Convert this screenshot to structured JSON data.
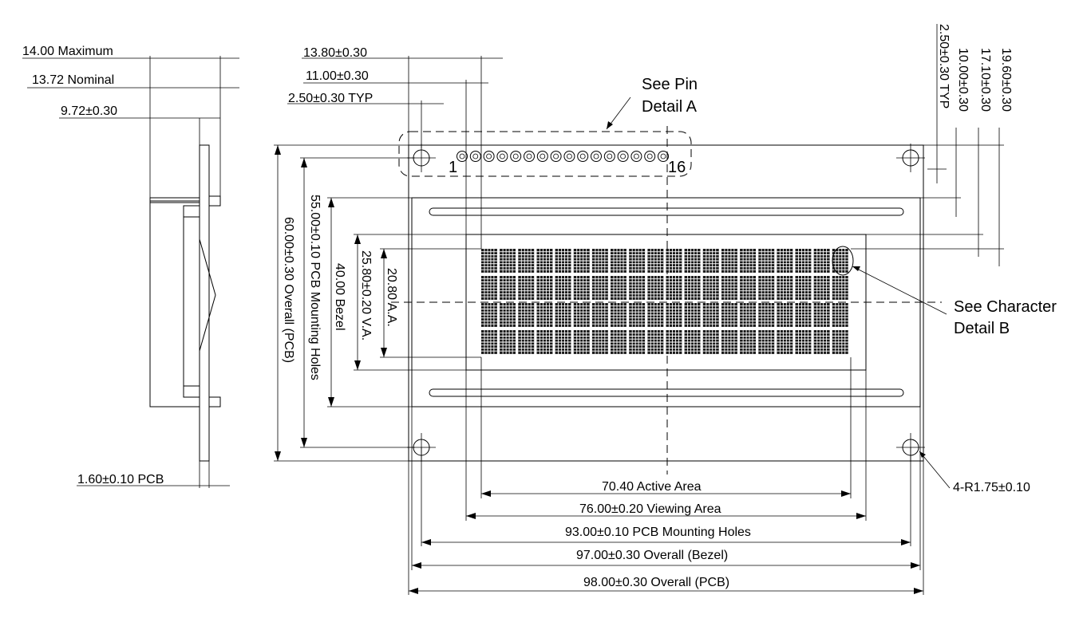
{
  "side_view": {
    "max_thickness": "14.00 Maximum",
    "nominal_thickness": "13.72 Nominal",
    "module_thickness": "9.72±0.30",
    "pcb_thickness": "1.60±0.10 PCB"
  },
  "pins": {
    "top_offset": "13.80±0.30",
    "first_pin": "11.00±0.30",
    "pitch": "2.50±0.30 TYP",
    "first_label": "1",
    "last_label": "16",
    "count": 16
  },
  "callouts": {
    "pin_detail_line1": "See Pin",
    "pin_detail_line2": "Detail A",
    "char_detail_line1": "See Character",
    "char_detail_line2": "Detail B",
    "hole_radius": "4-R1.75±0.10"
  },
  "right_dims": {
    "pin_offset": "2.50±0.30 TYP",
    "bezel_offset": "10.00±0.30",
    "va_offset": "17.10±0.30",
    "aa_offset": "19.60±0.30"
  },
  "vertical_dims": {
    "pcb_overall": "60.00±0.30 Overall (PCB)",
    "pcb_holes": "55.00±0.10 PCB Mounting Holes",
    "bezel": "40.00 Bezel",
    "viewing": "25.80±0.20 V.A.",
    "active": "20.80 A.A."
  },
  "horizontal_dims": {
    "active": "70.40 Active Area",
    "viewing": "76.00±0.20 Viewing Area",
    "holes": "93.00±0.10 PCB Mounting Holes",
    "bezel": "97.00±0.30 Overall (Bezel)",
    "pcb": "98.00±0.30 Overall (PCB)"
  },
  "display": {
    "columns": 20,
    "rows": 4
  }
}
